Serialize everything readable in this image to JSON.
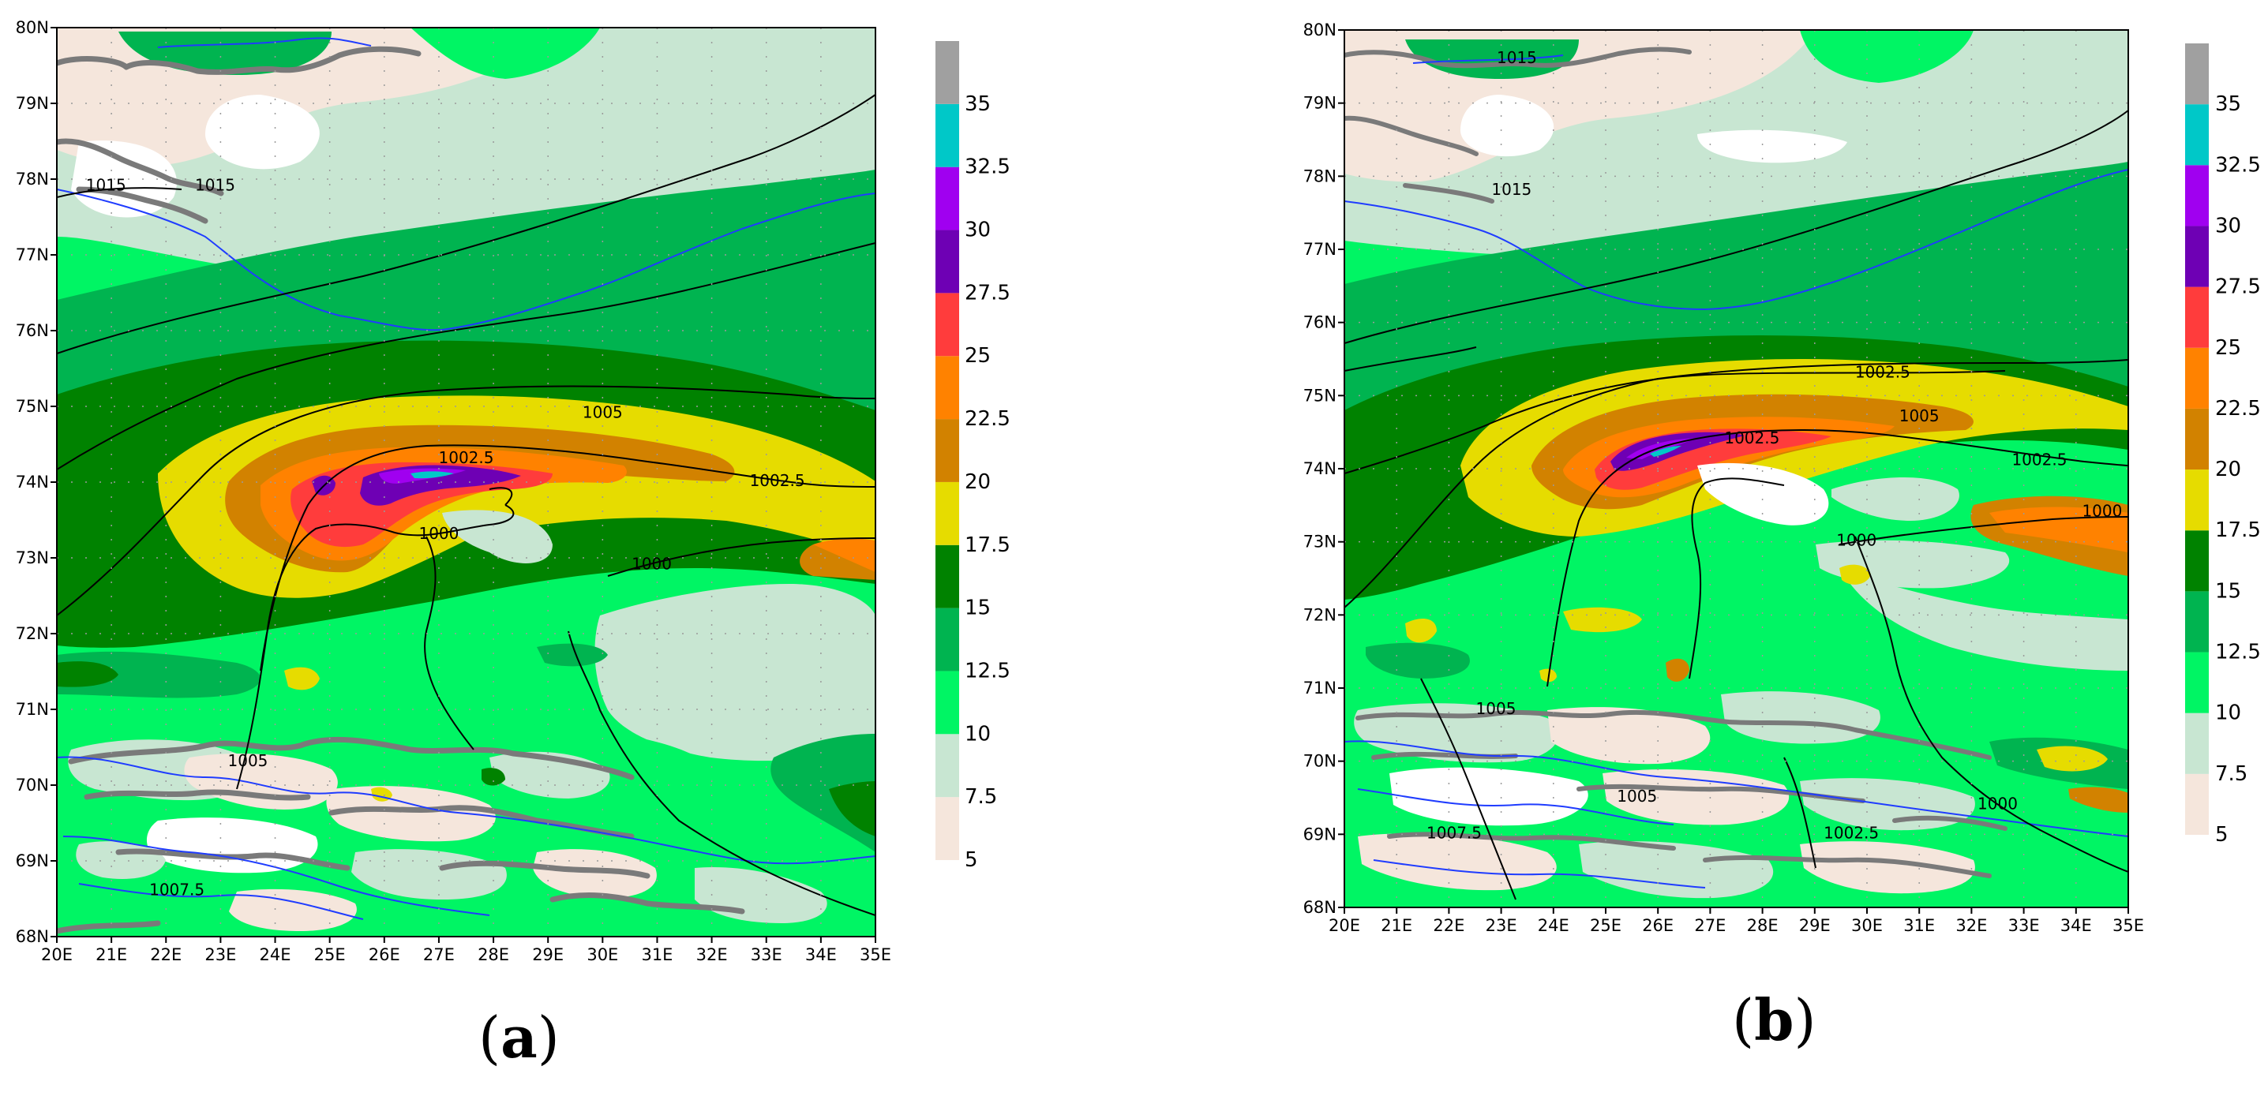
{
  "panels": [
    {
      "id": "a",
      "label_open": "(",
      "label_letter": "a",
      "label_close": ")",
      "lat_labels": [
        "68N",
        "69N",
        "70N",
        "71N",
        "72N",
        "73N",
        "74N",
        "75N",
        "76N",
        "77N",
        "78N",
        "79N",
        "80N"
      ],
      "lon_labels": [
        "20E",
        "21E",
        "22E",
        "23E",
        "24E",
        "25E",
        "26E",
        "27E",
        "28E",
        "29E",
        "30E",
        "31E",
        "32E",
        "33E",
        "34E",
        "35E"
      ],
      "isobar_labels": [
        {
          "text": "1015",
          "lon": 20.9,
          "lat": 77.9
        },
        {
          "text": "1015",
          "lon": 22.9,
          "lat": 77.9
        },
        {
          "text": "1005",
          "lon": 23.5,
          "lat": 70.3
        },
        {
          "text": "1007.5",
          "lon": 22.2,
          "lat": 68.6
        },
        {
          "text": "1005",
          "lon": 30.0,
          "lat": 74.9
        },
        {
          "text": "1002.5",
          "lon": 27.5,
          "lat": 74.3
        },
        {
          "text": "1002.5",
          "lon": 33.2,
          "lat": 74.0
        },
        {
          "text": "1000",
          "lon": 27.0,
          "lat": 73.3
        },
        {
          "text": "1000",
          "lon": 30.9,
          "lat": 72.9
        }
      ]
    },
    {
      "id": "b",
      "label_open": "(",
      "label_letter": "b",
      "label_close": ")",
      "lat_labels": [
        "68N",
        "69N",
        "70N",
        "71N",
        "72N",
        "73N",
        "74N",
        "75N",
        "76N",
        "77N",
        "78N",
        "79N",
        "80N"
      ],
      "lon_labels": [
        "20E",
        "21E",
        "22E",
        "23E",
        "24E",
        "25E",
        "26E",
        "27E",
        "28E",
        "29E",
        "30E",
        "31E",
        "32E",
        "33E",
        "34E",
        "35E"
      ],
      "isobar_labels": [
        {
          "text": "1015",
          "lon": 23.3,
          "lat": 79.6
        },
        {
          "text": "1015",
          "lon": 23.2,
          "lat": 77.8
        },
        {
          "text": "1005",
          "lon": 22.9,
          "lat": 70.7
        },
        {
          "text": "1007.5",
          "lon": 22.1,
          "lat": 69.0
        },
        {
          "text": "1005",
          "lon": 25.6,
          "lat": 69.5
        },
        {
          "text": "1002.5",
          "lon": 29.7,
          "lat": 69.0
        },
        {
          "text": "1000",
          "lon": 32.5,
          "lat": 69.4
        },
        {
          "text": "1002.5",
          "lon": 30.3,
          "lat": 75.3
        },
        {
          "text": "1005",
          "lon": 31.0,
          "lat": 74.7
        },
        {
          "text": "1002.5",
          "lon": 33.3,
          "lat": 74.1
        },
        {
          "text": "1000",
          "lon": 34.5,
          "lat": 73.4
        },
        {
          "text": "1000",
          "lon": 29.8,
          "lat": 73.0
        },
        {
          "text": "1002.5",
          "lon": 27.8,
          "lat": 74.4
        }
      ]
    }
  ],
  "colorbar": {
    "tick_labels": [
      "5",
      "7.5",
      "10",
      "12.5",
      "15",
      "17.5",
      "20",
      "22.5",
      "25",
      "27.5",
      "30",
      "32.5",
      "35"
    ],
    "colors": {
      "5": "#f5e6dc",
      "7.5": "#c8e6d2",
      "10": "#00f564",
      "12.5": "#00b450",
      "15": "#008200",
      "17.5": "#e6dc00",
      "20": "#d28200",
      "22.5": "#ff8200",
      "25": "#ff3c3c",
      "27.5": "#6e00b4",
      "30": "#a000f0",
      "32.5": "#00c8c8",
      "35": "#a0a0a0"
    }
  },
  "map_colors": {
    "coast": "#7a7a7a",
    "zero_contour": "#1f3cff",
    "isobar": "#000000",
    "grid": "#9a9a9a"
  }
}
